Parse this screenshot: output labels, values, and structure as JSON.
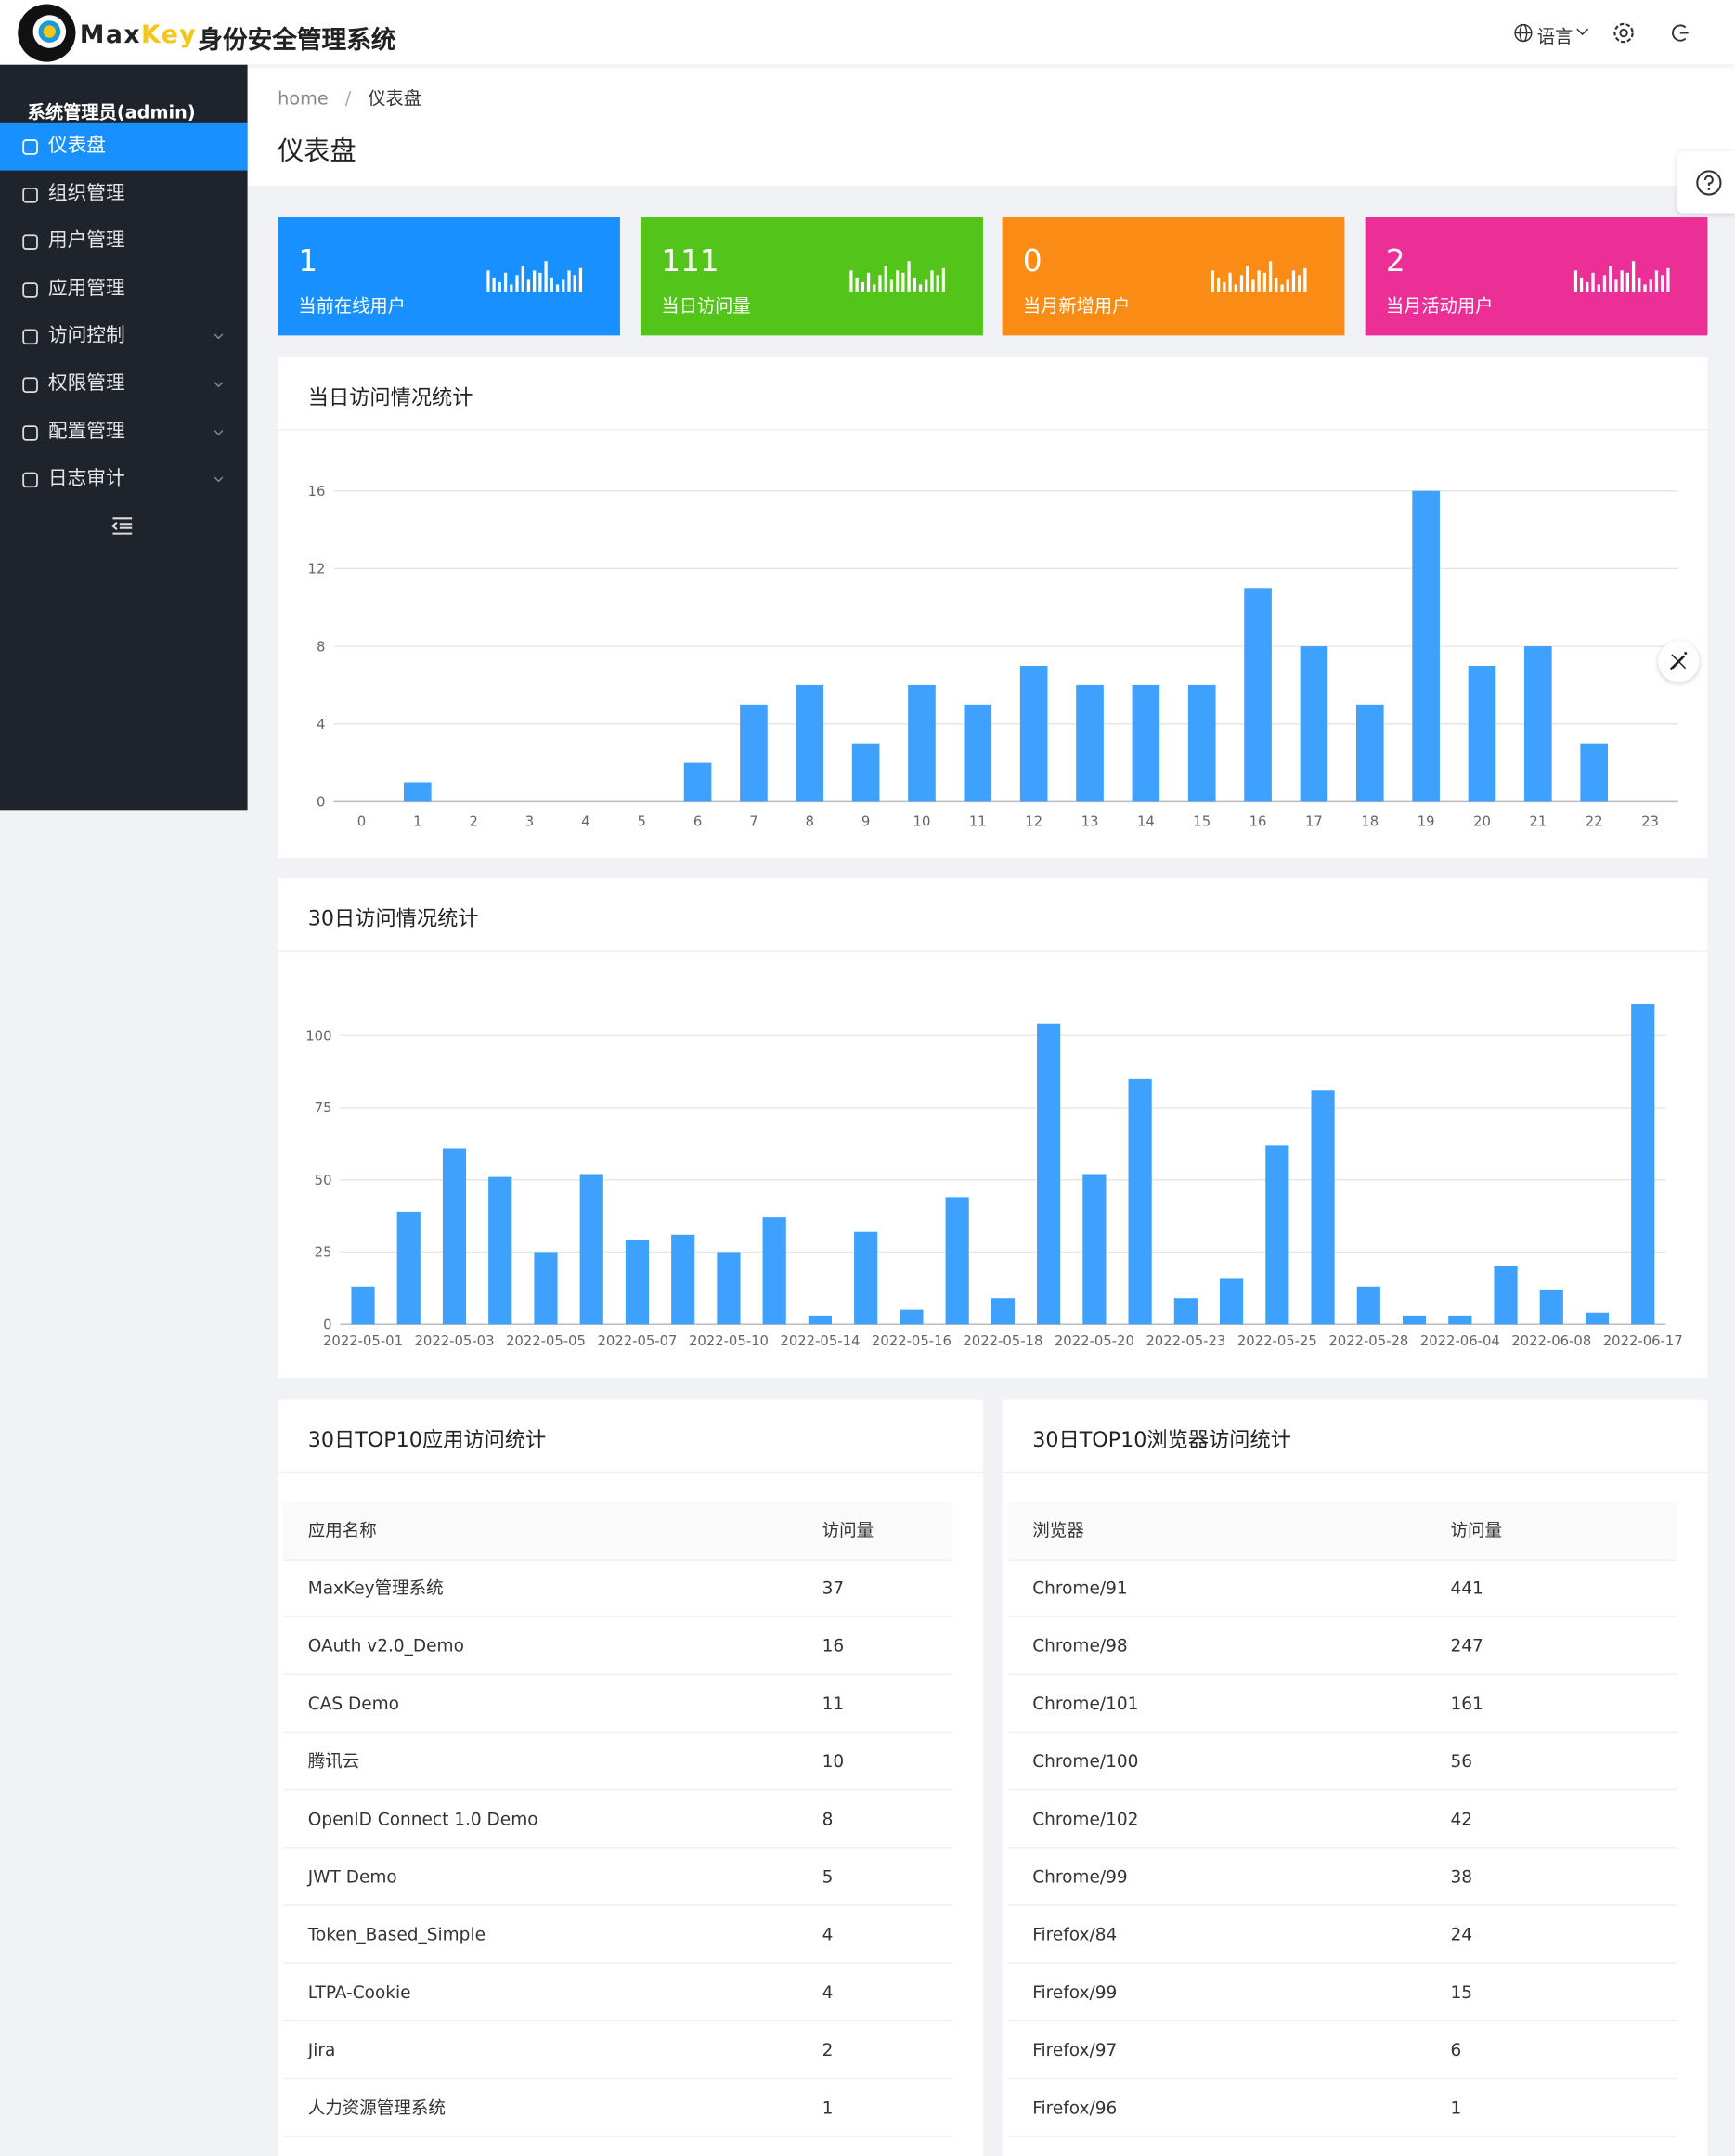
{
  "header": {
    "logo_max": "Max",
    "logo_key": "Key",
    "system_name": "身份安全管理系统",
    "language": "语言"
  },
  "sidebar": {
    "user": "系统管理员(admin)",
    "menu": [
      "仪表盘",
      "组织管理",
      "用户管理",
      "应用管理",
      "访问控制",
      "权限管理",
      "配置管理",
      "日志审计"
    ]
  },
  "breadcrumb": {
    "items": [
      "home",
      "仪表盘"
    ],
    "separator": "/"
  },
  "page_title": "仪表盘",
  "cards": [
    {
      "value": 1,
      "label": "当前在线用户",
      "color": "#1890ff"
    },
    {
      "value": 111,
      "label": "当日访问量",
      "color": "#52c41a"
    },
    {
      "value": 0,
      "label": "当月新增用户",
      "color": "#fa8c16"
    },
    {
      "value": 2,
      "label": "当月活动用户",
      "color": "#eb2f96"
    }
  ],
  "chart_data": [
    {
      "type": "bar",
      "title": "当日访问情况统计",
      "categories": [
        "0",
        "1",
        "2",
        "3",
        "4",
        "5",
        "6",
        "7",
        "8",
        "9",
        "10",
        "11",
        "12",
        "13",
        "14",
        "15",
        "16",
        "17",
        "18",
        "19",
        "20",
        "21",
        "22",
        "23"
      ],
      "values": [
        0,
        1,
        0,
        0,
        0,
        0,
        2,
        5,
        6,
        3,
        6,
        5,
        7,
        6,
        6,
        6,
        11,
        8,
        5,
        16,
        7,
        8,
        3,
        0
      ],
      "color": "#3ea1fd",
      "ylim": [
        0,
        16
      ],
      "yticks": [
        0,
        4,
        8,
        12,
        16
      ],
      "grid": true
    },
    {
      "type": "bar",
      "title": "30日访问情况统计",
      "categories": [
        "2022-05-01",
        null,
        "2022-05-03",
        null,
        "2022-05-05",
        null,
        "2022-05-07",
        null,
        "2022-05-10",
        null,
        "2022-05-14",
        null,
        "2022-05-16",
        null,
        "2022-05-18",
        null,
        "2022-05-20",
        null,
        "2022-05-23",
        null,
        "2022-05-25",
        null,
        "2022-05-28",
        null,
        "2022-06-04",
        null,
        "2022-06-08",
        null,
        "2022-06-17"
      ],
      "values": [
        13,
        39,
        61,
        51,
        25,
        52,
        29,
        31,
        25,
        37,
        3,
        32,
        5,
        44,
        9,
        104,
        52,
        85,
        9,
        16,
        62,
        81,
        13,
        3,
        3,
        20,
        12,
        4,
        111
      ],
      "color": "#3ea1fd",
      "ylim": [
        0,
        100
      ],
      "yticks": [
        0,
        25,
        50,
        75,
        100
      ],
      "grid": true
    }
  ],
  "tables": [
    {
      "title": "30日TOP10应用访问统计",
      "headers": [
        "应用名称",
        "访问量"
      ],
      "rows": [
        [
          "MaxKey管理系统",
          37
        ],
        [
          "OAuth v2.0_Demo",
          16
        ],
        [
          "CAS Demo",
          11
        ],
        [
          "腾讯云",
          10
        ],
        [
          "OpenID Connect 1.0 Demo",
          8
        ],
        [
          "JWT Demo",
          5
        ],
        [
          "Token_Based_Simple",
          4
        ],
        [
          "LTPA-Cookie",
          4
        ],
        [
          "Jira",
          2
        ],
        [
          "人力资源管理系统",
          1
        ]
      ]
    },
    {
      "title": "30日TOP10浏览器访问统计",
      "headers": [
        "浏览器",
        "访问量"
      ],
      "rows": [
        [
          "Chrome/91",
          441
        ],
        [
          "Chrome/98",
          247
        ],
        [
          "Chrome/101",
          161
        ],
        [
          "Chrome/100",
          56
        ],
        [
          "Chrome/102",
          42
        ],
        [
          "Chrome/99",
          38
        ],
        [
          "Firefox/84",
          24
        ],
        [
          "Firefox/99",
          15
        ],
        [
          "Firefox/97",
          6
        ],
        [
          "Firefox/96",
          1
        ]
      ]
    }
  ]
}
